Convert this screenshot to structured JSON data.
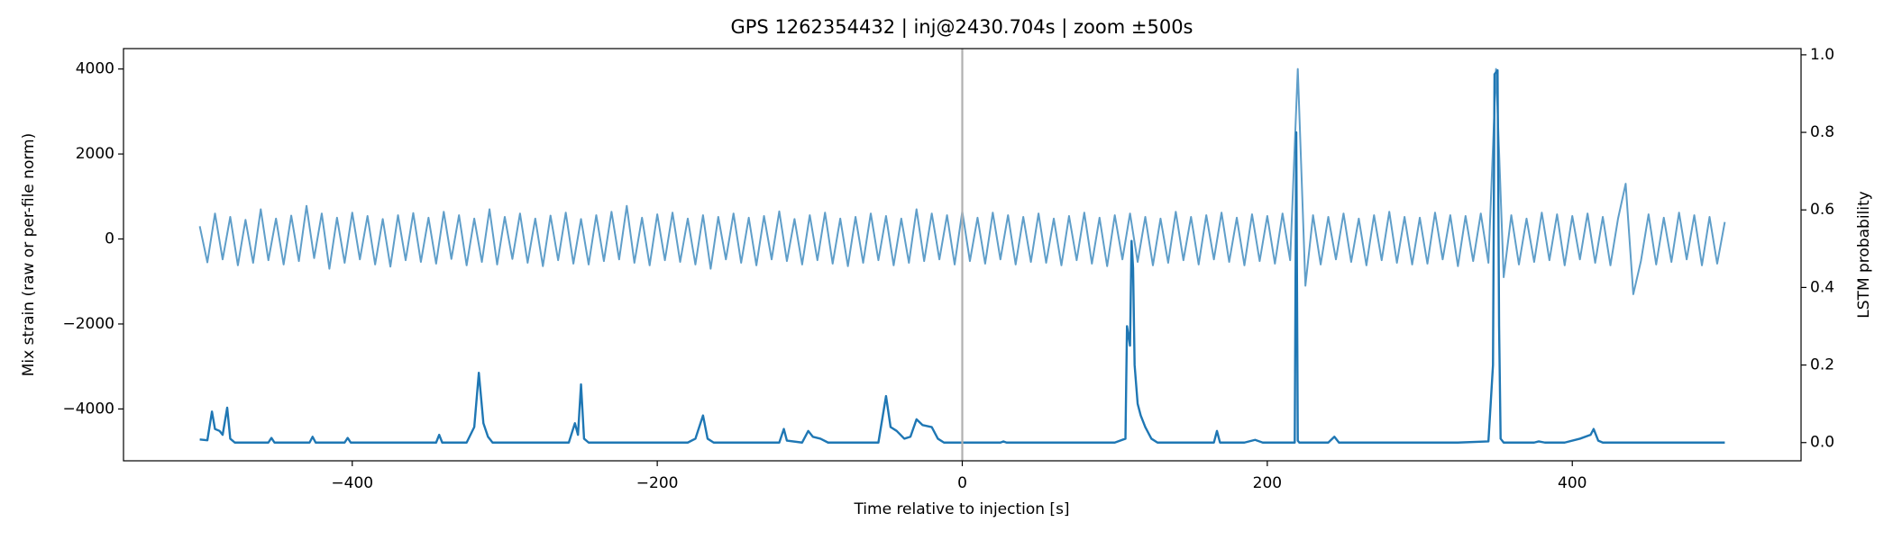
{
  "chart_data": {
    "type": "line",
    "title": "GPS 1262354432 | inj@2430.704s | zoom ±500s",
    "xlabel": "Time relative to injection [s]",
    "ylabel": "Mix strain (raw or per-file norm)",
    "y2label": "LSTM probability",
    "xlim": [
      -550,
      550
    ],
    "ylim": [
      -5220,
      4480
    ],
    "y2lim": [
      -0.047,
      1.016
    ],
    "xticks": [
      {
        "value": -400,
        "label": "−400"
      },
      {
        "value": -200,
        "label": "−200"
      },
      0,
      200,
      400
    ],
    "yticks": [
      {
        "value": -4000,
        "label": "−4000"
      },
      {
        "value": -2000,
        "label": "−2000"
      },
      0,
      2000,
      4000
    ],
    "y2ticks": [
      {
        "value": 0,
        "label": "0.0"
      },
      0.2,
      0.4,
      0.6,
      0.8,
      {
        "value": 1,
        "label": "1.0"
      }
    ],
    "reference_x": 0,
    "reference_color": "#b0b0b0",
    "series": [
      {
        "name": "Mix strain",
        "color": "#5f9ec9",
        "axis": "y",
        "x": [
          -500,
          -495,
          -490,
          -485,
          -480,
          -475,
          -470,
          -465,
          -460,
          -455,
          -450,
          -445,
          -440,
          -435,
          -430,
          -425,
          -420,
          -415,
          -410,
          -405,
          -400,
          -395,
          -390,
          -385,
          -380,
          -375,
          -370,
          -365,
          -360,
          -355,
          -350,
          -345,
          -340,
          -335,
          -330,
          -325,
          -320,
          -315,
          -310,
          -305,
          -300,
          -295,
          -290,
          -285,
          -280,
          -275,
          -270,
          -265,
          -260,
          -255,
          -250,
          -245,
          -240,
          -235,
          -230,
          -225,
          -220,
          -215,
          -210,
          -205,
          -200,
          -195,
          -190,
          -185,
          -180,
          -175,
          -170,
          -165,
          -160,
          -155,
          -150,
          -145,
          -140,
          -135,
          -130,
          -125,
          -120,
          -115,
          -110,
          -105,
          -100,
          -95,
          -90,
          -85,
          -80,
          -75,
          -70,
          -65,
          -60,
          -55,
          -50,
          -45,
          -40,
          -35,
          -30,
          -25,
          -20,
          -15,
          -10,
          -5,
          0,
          5,
          10,
          15,
          20,
          25,
          30,
          35,
          40,
          45,
          50,
          55,
          60,
          65,
          70,
          75,
          80,
          85,
          90,
          95,
          100,
          105,
          110,
          115,
          120,
          125,
          130,
          135,
          140,
          145,
          150,
          155,
          160,
          165,
          170,
          175,
          180,
          185,
          190,
          195,
          200,
          205,
          210,
          215,
          220,
          225,
          230,
          235,
          240,
          245,
          250,
          255,
          260,
          265,
          270,
          275,
          280,
          285,
          290,
          295,
          300,
          305,
          310,
          315,
          320,
          325,
          330,
          335,
          340,
          345,
          350,
          355,
          360,
          365,
          370,
          375,
          380,
          385,
          390,
          395,
          400,
          405,
          410,
          415,
          420,
          425,
          430,
          435,
          440,
          445,
          450,
          455,
          460,
          465,
          470,
          475,
          480,
          485,
          490,
          495,
          500
        ],
        "values": [
          300,
          -550,
          600,
          -480,
          520,
          -620,
          450,
          -560,
          700,
          -500,
          480,
          -600,
          550,
          -520,
          780,
          -450,
          600,
          -700,
          500,
          -560,
          620,
          -480,
          540,
          -600,
          470,
          -650,
          560,
          -500,
          610,
          -540,
          500,
          -580,
          640,
          -470,
          560,
          -620,
          480,
          -540,
          700,
          -600,
          520,
          -470,
          600,
          -560,
          480,
          -640,
          550,
          -500,
          620,
          -580,
          470,
          -600,
          560,
          -520,
          640,
          -480,
          780,
          -560,
          500,
          -620,
          580,
          -500,
          620,
          -540,
          480,
          -600,
          560,
          -700,
          520,
          -480,
          600,
          -560,
          500,
          -620,
          540,
          -480,
          650,
          -520,
          470,
          -600,
          560,
          -500,
          620,
          -580,
          480,
          -640,
          520,
          -560,
          600,
          -500,
          540,
          -620,
          480,
          -560,
          700,
          -520,
          600,
          -480,
          560,
          -600,
          650,
          -520,
          500,
          -580,
          620,
          -480,
          560,
          -600,
          520,
          -540,
          600,
          -560,
          480,
          -620,
          540,
          -500,
          620,
          -580,
          500,
          -640,
          560,
          -480,
          600,
          -540,
          520,
          -620,
          480,
          -560,
          640,
          -500,
          520,
          -600,
          560,
          -480,
          620,
          -540,
          500,
          -620,
          580,
          -520,
          540,
          -580,
          600,
          -500,
          4000,
          -1100,
          560,
          -600,
          520,
          -480,
          600,
          -540,
          480,
          -620,
          560,
          -500,
          640,
          -560,
          520,
          -600,
          500,
          -580,
          620,
          -480,
          560,
          -640,
          540,
          -520,
          600,
          -560,
          4000,
          -900,
          560,
          -600,
          480,
          -540,
          620,
          -500,
          580,
          -620,
          540,
          -480,
          600,
          -560,
          520,
          -620,
          480,
          1300,
          -1300,
          -520,
          580,
          -600,
          500,
          -540,
          620,
          -480,
          560,
          -620,
          520,
          -580,
          400
        ]
      },
      {
        "name": "LSTM probability",
        "color": "#1f77b4",
        "axis": "y2",
        "x": [
          -500,
          -495,
          -492,
          -490,
          -487,
          -485,
          -482,
          -480,
          -477,
          -455,
          -453,
          -451,
          -428,
          -426,
          -424,
          -405,
          -403,
          -401,
          -345,
          -343,
          -341,
          -325,
          -320,
          -317,
          -314,
          -311,
          -308,
          -258,
          -254,
          -252,
          -250,
          -248,
          -245,
          -180,
          -175,
          -170,
          -167,
          -163,
          -120,
          -117,
          -115,
          -105,
          -101,
          -98,
          -93,
          -88,
          -55,
          -50,
          -47,
          -43,
          -38,
          -34,
          -30,
          -26,
          -20,
          -16,
          -12,
          25,
          27,
          29,
          100,
          107,
          108,
          110,
          111,
          112,
          113,
          115,
          117,
          120,
          124,
          128,
          165,
          167,
          169,
          185,
          192,
          197,
          218,
          219,
          220,
          221,
          240,
          244,
          247,
          325,
          345,
          348,
          349,
          351,
          352,
          353,
          355,
          375,
          378,
          382,
          395,
          405,
          412,
          414,
          417,
          420,
          500
        ],
        "values": [
          0.008,
          0.006,
          0.08,
          0.035,
          0.03,
          0.02,
          0.09,
          0.01,
          0,
          0,
          0.012,
          0,
          0,
          0.015,
          0,
          0,
          0.012,
          0,
          0,
          0.02,
          0,
          0,
          0.04,
          0.18,
          0.05,
          0.015,
          0,
          0,
          0.05,
          0.02,
          0.15,
          0.01,
          0,
          0,
          0.01,
          0.07,
          0.01,
          0,
          0,
          0.035,
          0.005,
          0,
          0.03,
          0.015,
          0.01,
          0,
          0,
          0.12,
          0.04,
          0.03,
          0.01,
          0.015,
          0.06,
          0.045,
          0.04,
          0.01,
          0,
          0,
          0.003,
          0,
          0,
          0.01,
          0.3,
          0.25,
          0.52,
          0.45,
          0.2,
          0.1,
          0.07,
          0.04,
          0.01,
          0,
          0,
          0.03,
          0,
          0,
          0.007,
          0,
          0,
          0.8,
          0.005,
          0,
          0,
          0.015,
          0,
          0,
          0.003,
          0.2,
          0.95,
          0.96,
          0.3,
          0.01,
          0,
          0,
          0.003,
          0,
          0,
          0.01,
          0.02,
          0.035,
          0.005,
          0,
          0
        ]
      }
    ]
  }
}
